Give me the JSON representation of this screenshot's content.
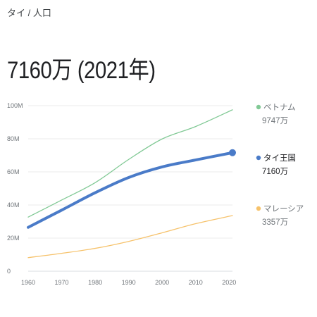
{
  "breadcrumb": "タイ / 人口",
  "headline": "7160万 (2021年)",
  "chart_data": {
    "type": "line",
    "x": [
      1960,
      1970,
      1980,
      1990,
      2000,
      2010,
      2021
    ],
    "xticks": [
      1960,
      1970,
      1980,
      1990,
      2000,
      2010,
      2020
    ],
    "xlim": [
      1960,
      2021
    ],
    "ylim": [
      0,
      100
    ],
    "yticks": [
      0,
      20,
      40,
      60,
      80,
      100
    ],
    "ytick_labels": [
      "0",
      "20M",
      "40M",
      "60M",
      "80M",
      "100M"
    ],
    "grid": true,
    "legend_position": "right",
    "series": [
      {
        "name": "ベトナム",
        "value_label": "9747万",
        "color": "#81c995",
        "highlight": false,
        "values": [
          32.7,
          43.0,
          53.5,
          67.5,
          79.9,
          87.4,
          97.5
        ]
      },
      {
        "name": "タイ王国",
        "value_label": "7160万",
        "color": "#4a7bc8",
        "highlight": true,
        "values": [
          26.5,
          36.9,
          47.4,
          56.6,
          63.0,
          67.2,
          71.6
        ]
      },
      {
        "name": "マレーシア",
        "value_label": "3357万",
        "color": "#f6c26b",
        "highlight": false,
        "values": [
          8.2,
          10.8,
          13.8,
          18.0,
          23.2,
          28.7,
          33.6
        ]
      }
    ]
  }
}
